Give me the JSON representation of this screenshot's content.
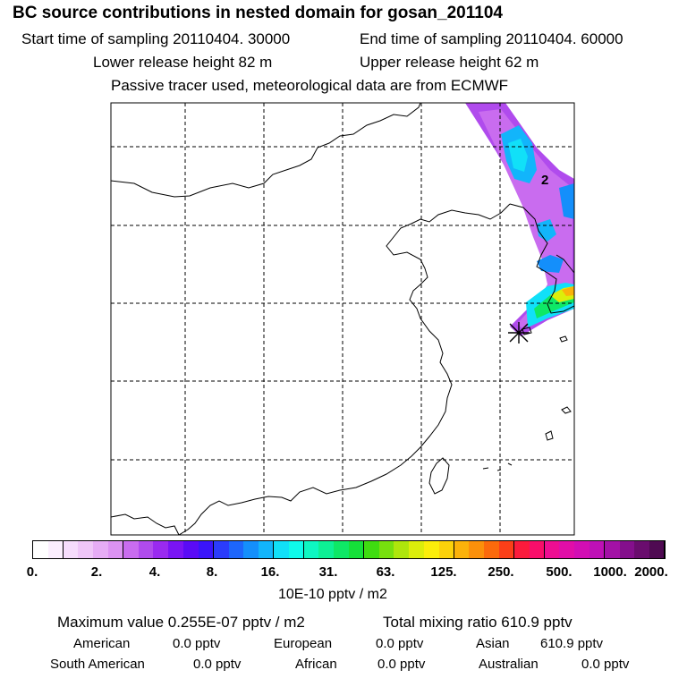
{
  "title": "BC  source contributions in nested domain for gosan_201104",
  "sampling": {
    "start": "Start time of sampling 20110404. 30000",
    "end": "End time of sampling 20110404. 60000"
  },
  "release": {
    "lower": "Lower release height   82 m",
    "upper": "Upper release height   62 m"
  },
  "note": "Passive tracer used, meteorological data are from ECMWF",
  "map": {
    "contour_label": "2",
    "receptor": "gosan"
  },
  "colorbar": {
    "colors": [
      "#ffffff",
      "#fbeefe",
      "#f6dcfc",
      "#efc6f8",
      "#e6acf5",
      "#dc92f2",
      "#c96cef",
      "#b04bed",
      "#9a2af0",
      "#7a14f4",
      "#5a0bf6",
      "#3a14fa",
      "#2b3cfb",
      "#1d66fb",
      "#148ffb",
      "#12b5fb",
      "#11e0f8",
      "#0ffaea",
      "#0ef6c2",
      "#0df095",
      "#0ee866",
      "#15e039",
      "#3fdc10",
      "#77e00e",
      "#aee60c",
      "#dcee0b",
      "#fbee0a",
      "#fbd20a",
      "#fbb20a",
      "#fb900a",
      "#fb6a0c",
      "#fb3f18",
      "#fb1b3c",
      "#f90e6a",
      "#ee0e92",
      "#e10ea8",
      "#d20eb4",
      "#be10b6",
      "#a311a6",
      "#840f8c",
      "#6a0d6e",
      "#4f0a52"
    ],
    "tick_labels": [
      "0.",
      "2.",
      "4.",
      "8.",
      "16.",
      "31.",
      "63.",
      "125.",
      "250.",
      "500.",
      "1000.",
      "2000."
    ],
    "unit": "10E-10 pptv / m2"
  },
  "summary": {
    "max_value": "Maximum value  0.255E-07 pptv / m2",
    "total": "Total mixing ratio      610.9 pptv"
  },
  "regions": [
    {
      "name": "American",
      "value": "0.0 pptv"
    },
    {
      "name": "European",
      "value": "0.0 pptv"
    },
    {
      "name": "Asian",
      "value": "610.9 pptv"
    },
    {
      "name": "South American",
      "value": "0.0 pptv"
    },
    {
      "name": "African",
      "value": "0.0 pptv"
    },
    {
      "name": "Australian",
      "value": "0.0 pptv"
    }
  ]
}
